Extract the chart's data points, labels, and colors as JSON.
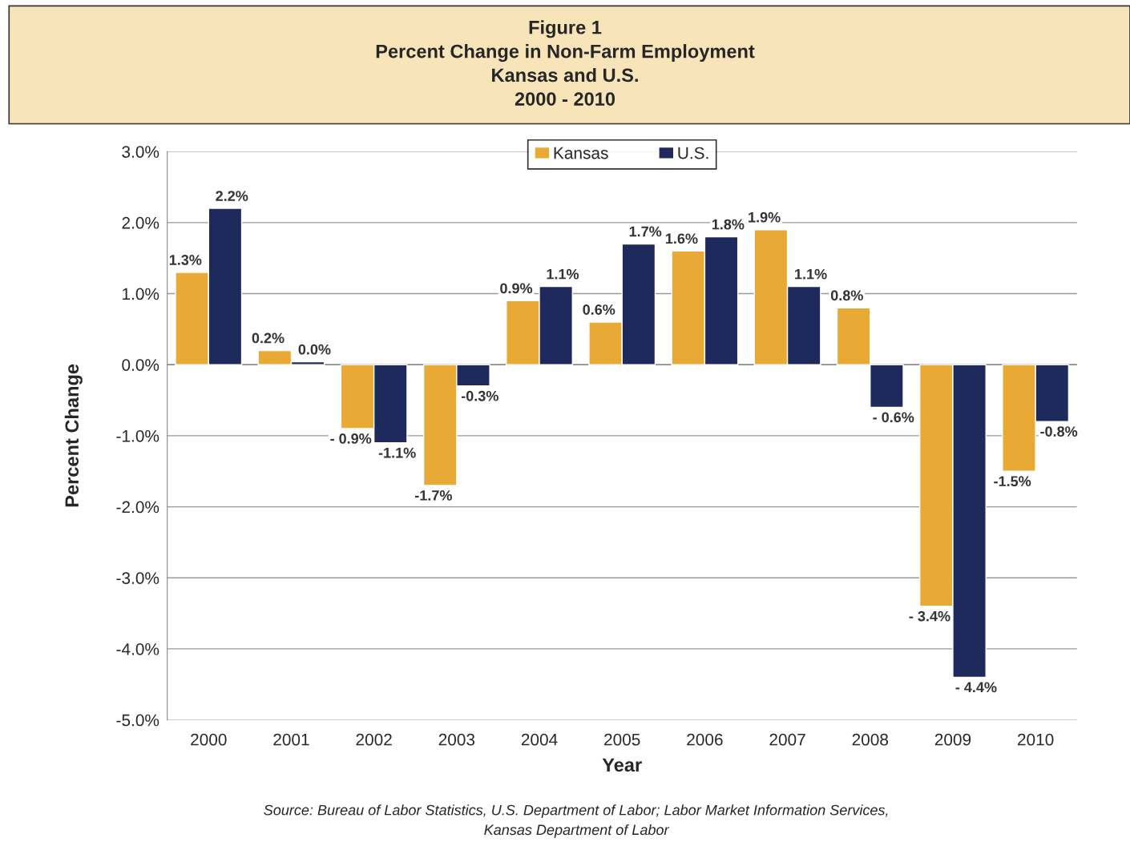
{
  "chart_data": {
    "type": "bar",
    "title": "Figure 1\nPercent Change in Non-Farm Employment\nKansas and U.S.\n2000 - 2010",
    "xlabel": "Year",
    "ylabel": "Percent Change",
    "categories": [
      "2000",
      "2001",
      "2002",
      "2003",
      "2004",
      "2005",
      "2006",
      "2007",
      "2008",
      "2009",
      "2010"
    ],
    "series": [
      {
        "name": "Kansas",
        "color": "#e8a935",
        "values": [
          1.3,
          0.2,
          -0.9,
          -1.7,
          0.9,
          0.6,
          1.6,
          1.9,
          0.8,
          -3.4,
          -1.5
        ],
        "value_labels": [
          "1.3%",
          "0.2%",
          "- 0.9%",
          "-1.7%",
          "0.9%",
          "0.6%",
          "1.6%",
          "1.9%",
          "0.8%",
          "- 3.4%",
          "-1.5%"
        ]
      },
      {
        "name": "U.S.",
        "color": "#1f2a5c",
        "values": [
          2.2,
          0.04,
          -1.1,
          -0.3,
          1.1,
          1.7,
          1.8,
          1.1,
          -0.6,
          -4.4,
          -0.8
        ],
        "value_labels": [
          "2.2%",
          "0.0%",
          "-1.1%",
          "-0.3%",
          "1.1%",
          "1.7%",
          "1.8%",
          "1.1%",
          "- 0.6%",
          "- 4.4%",
          "-0.8%"
        ]
      }
    ],
    "ylim": [
      -5,
      3
    ],
    "yticks": [
      {
        "value": -5,
        "label": "-5.0%"
      },
      {
        "value": -4,
        "label": "-4.0%"
      },
      {
        "value": -3,
        "label": "-3.0%"
      },
      {
        "value": -2,
        "label": "-2.0%"
      },
      {
        "value": -1,
        "label": "-1.0%"
      },
      {
        "value": 0,
        "label": "0.0%"
      },
      {
        "value": 1,
        "label": "1.0%"
      },
      {
        "value": 2,
        "label": "2.0%"
      },
      {
        "value": 3,
        "label": "3.0%"
      }
    ],
    "grid": "y",
    "legend": "top",
    "annotations": [
      "Source: Bureau of Labor Statistics, U.S. Department of Labor; Labor Market Information Services,\nKansas Department of Labor"
    ]
  }
}
